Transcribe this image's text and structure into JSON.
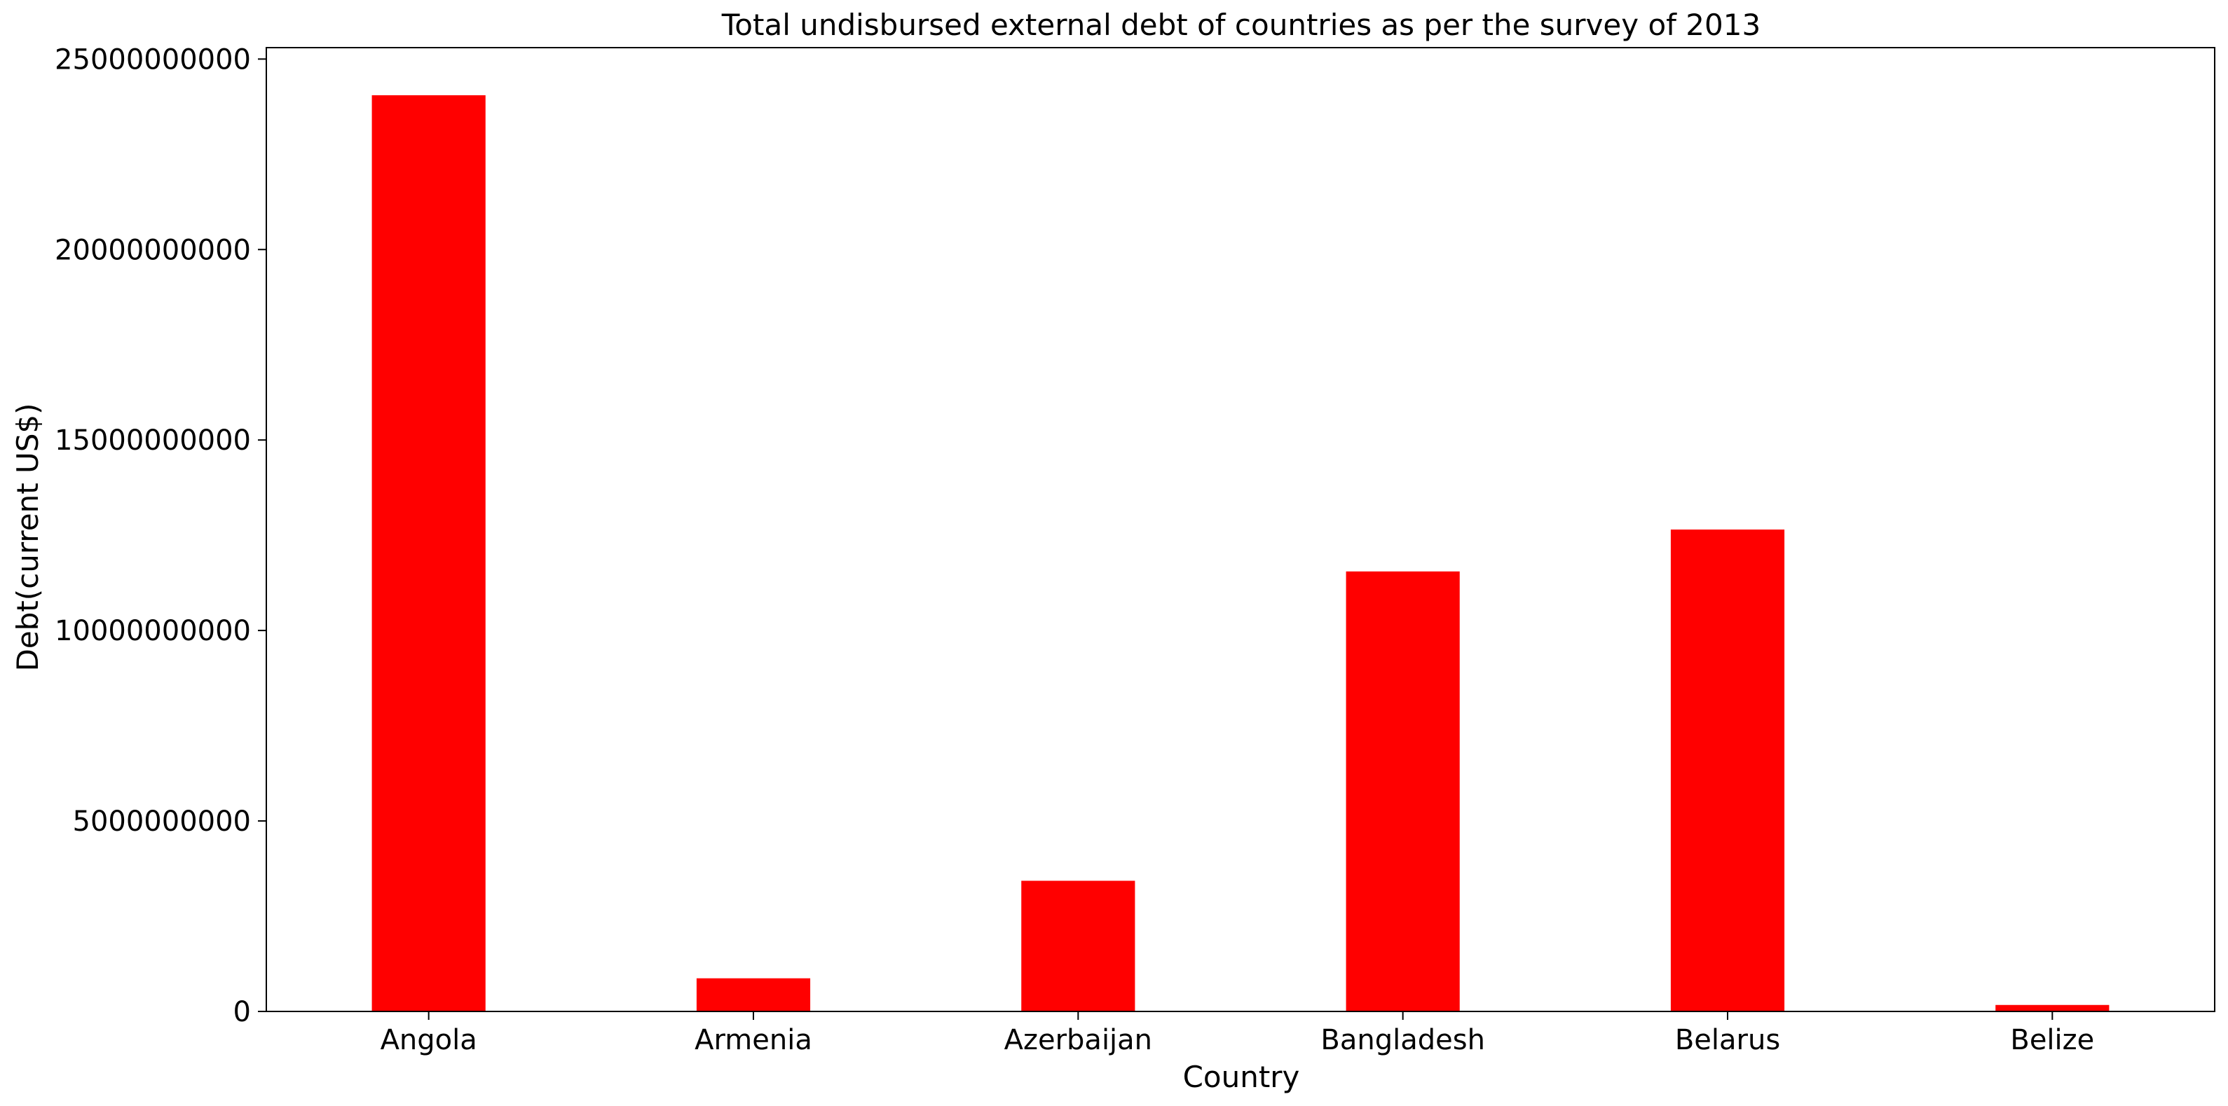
{
  "colors": {
    "bar": "#ff0000",
    "axis": "#000000",
    "background": "#ffffff"
  },
  "chart_data": {
    "type": "bar",
    "title": "Total undisbursed external debt of countries as per the survey of 2013",
    "xlabel": "Country",
    "ylabel": "Debt(current US$)",
    "categories": [
      "Angola",
      "Armenia",
      "Azerbaijan",
      "Bangladesh",
      "Belarus",
      "Belize"
    ],
    "values": [
      24050000000,
      870000000,
      3430000000,
      11550000000,
      12650000000,
      170000000
    ],
    "ylim": [
      0,
      25300000000
    ],
    "yticks": [
      0,
      5000000000,
      10000000000,
      15000000000,
      20000000000,
      25000000000
    ],
    "ytick_labels": [
      "0",
      "5000000000",
      "10000000000",
      "15000000000",
      "20000000000",
      "25000000000"
    ],
    "grid": false,
    "legend": false
  }
}
